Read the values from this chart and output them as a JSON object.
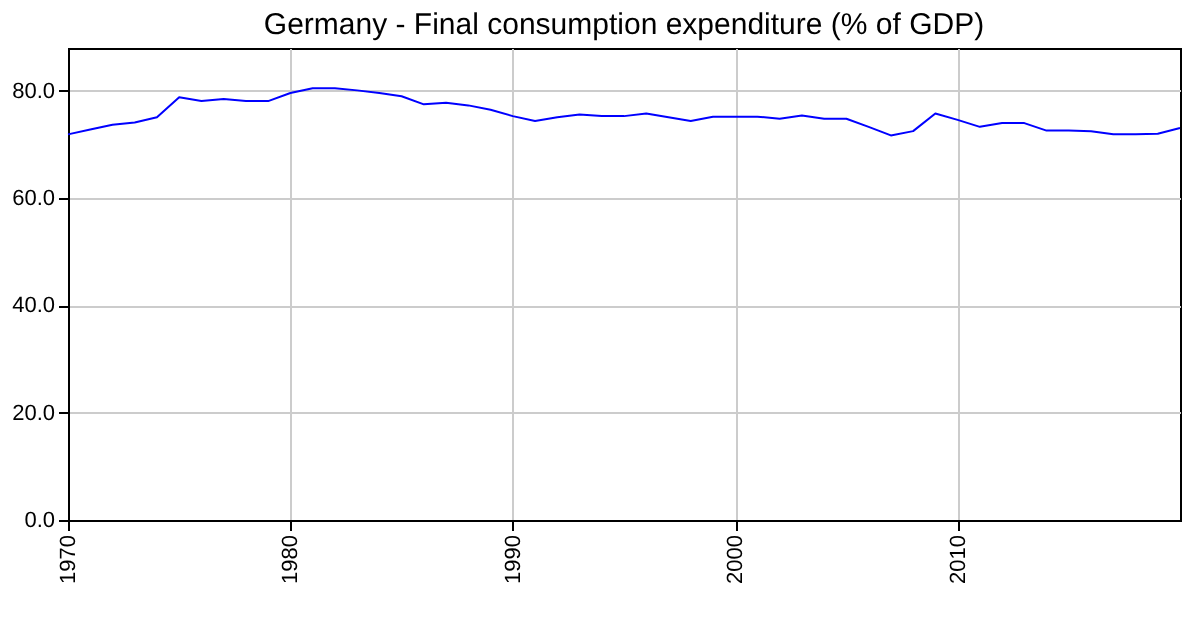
{
  "chart_data": {
    "type": "line",
    "title": "Germany - Final consumption expenditure (% of GDP)",
    "x": [
      1970,
      1971,
      1972,
      1973,
      1974,
      1975,
      1976,
      1977,
      1978,
      1979,
      1980,
      1981,
      1982,
      1983,
      1984,
      1985,
      1986,
      1987,
      1988,
      1989,
      1990,
      1991,
      1992,
      1993,
      1994,
      1995,
      1996,
      1997,
      1998,
      1999,
      2000,
      2001,
      2002,
      2003,
      2004,
      2005,
      2006,
      2007,
      2008,
      2009,
      2010,
      2011,
      2012,
      2013,
      2014,
      2015,
      2016,
      2017,
      2018,
      2019,
      2020
    ],
    "series": [
      {
        "color": "#0000ff",
        "values": [
          71.9,
          72.8,
          73.7,
          74.1,
          75.1,
          78.8,
          78.1,
          78.5,
          78.1,
          78.1,
          79.6,
          80.5,
          80.5,
          80.1,
          79.6,
          79.0,
          77.5,
          77.8,
          77.3,
          76.5,
          75.3,
          74.4,
          75.1,
          75.6,
          75.3,
          75.3,
          75.8,
          75.1,
          74.4,
          75.2,
          75.2,
          75.2,
          74.8,
          75.4,
          74.8,
          74.8,
          73.3,
          71.7,
          72.5,
          75.8,
          74.6,
          73.3,
          74.0,
          74.0,
          72.6,
          72.6,
          72.5,
          71.9,
          71.9,
          72.0,
          73.1
        ]
      }
    ],
    "xlim": [
      1970,
      2020
    ],
    "xticks": [
      1970,
      1980,
      1990,
      2000,
      2010
    ],
    "ylim": [
      0,
      88
    ],
    "yticks": [
      {
        "value": 0,
        "label": "0.0"
      },
      {
        "value": 20,
        "label": "20.0"
      },
      {
        "value": 40,
        "label": "40.0"
      },
      {
        "value": 60,
        "label": "60.0"
      },
      {
        "value": 80,
        "label": "80.0"
      }
    ],
    "grid": true,
    "marker": "none",
    "line_style": "solid"
  }
}
